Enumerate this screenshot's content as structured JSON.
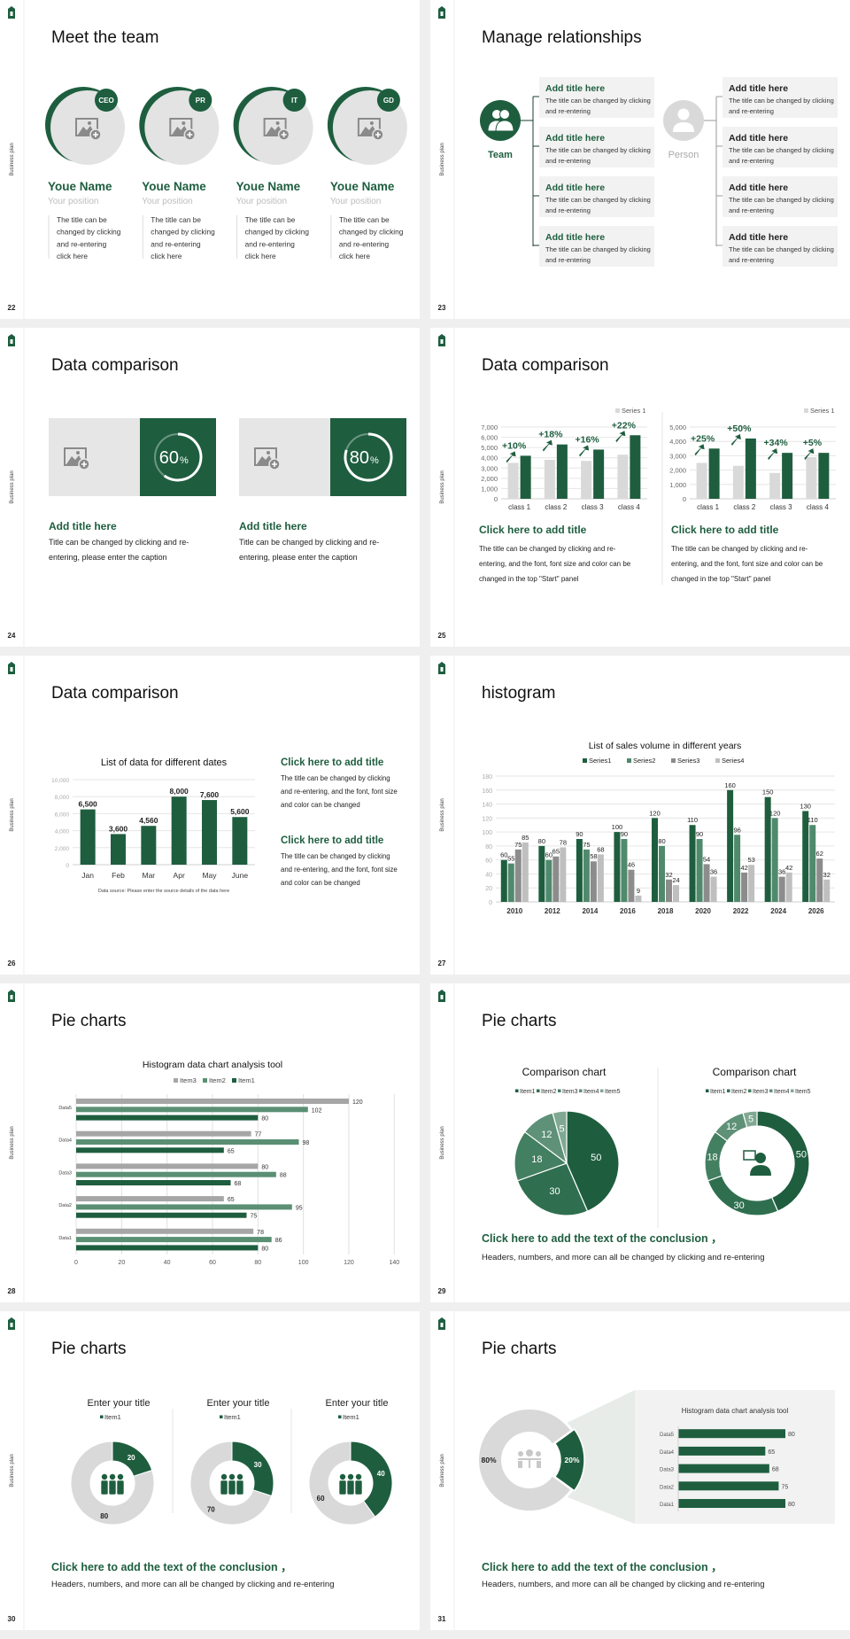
{
  "deck": {
    "side_label": "Business plan",
    "colors": {
      "accent": "#1e5e3f",
      "medium": "#5a8f74",
      "gray": "#d9d9d9",
      "dark_gray": "#8c8c8c",
      "light_gray": "#bfbfbf"
    }
  },
  "slide22": {
    "page": "22",
    "title": "Meet the team",
    "members": [
      {
        "badge": "CEO",
        "name": "Youe Name",
        "position": "Your position",
        "desc": [
          "The title can be",
          "changed by clicking",
          "and re-entering",
          "click here"
        ]
      },
      {
        "badge": "PR",
        "name": "Youe Name",
        "position": "Your position",
        "desc": [
          "The title can be",
          "changed by clicking",
          "and re-entering",
          "click here"
        ]
      },
      {
        "badge": "IT",
        "name": "Youe Name",
        "position": "Your position",
        "desc": [
          "The title can be",
          "changed by clicking",
          "and re-entering",
          "click here"
        ]
      },
      {
        "badge": "GD",
        "name": "Youe Name",
        "position": "Your position",
        "desc": [
          "The title can be",
          "changed by clicking",
          "and re-entering",
          "click here"
        ]
      }
    ]
  },
  "slide23": {
    "page": "23",
    "title": "Manage relationships",
    "team_label": "Team",
    "person_label": "Person",
    "team_items": [
      {
        "title": "Add title here",
        "desc": [
          "The title can be changed by clicking",
          "and re-entering"
        ]
      },
      {
        "title": "Add title here",
        "desc": [
          "The title can be changed by clicking",
          "and re-entering"
        ]
      },
      {
        "title": "Add title here",
        "desc": [
          "The title can be changed by clicking",
          "and re-entering"
        ]
      },
      {
        "title": "Add title here",
        "desc": [
          "The title can be changed by clicking",
          "and re-entering"
        ]
      }
    ],
    "person_items": [
      {
        "title": "Add title here",
        "desc": [
          "The title can be changed by clicking",
          "and re-entering"
        ]
      },
      {
        "title": "Add title here",
        "desc": [
          "The title can be changed by clicking",
          "and re-entering"
        ]
      },
      {
        "title": "Add title here",
        "desc": [
          "The title can be changed by clicking",
          "and re-entering"
        ]
      },
      {
        "title": "Add title here",
        "desc": [
          "The title can be changed by clicking",
          "and re-entering"
        ]
      }
    ]
  },
  "slide24": {
    "page": "24",
    "title": "Data comparison",
    "cards": [
      {
        "percent": "60",
        "unit": "%",
        "progress": 60,
        "heading": "Add title here",
        "desc": [
          "Title can be changed by clicking and re-",
          "entering, please enter the caption"
        ]
      },
      {
        "percent": "80",
        "unit": "%",
        "progress": 80,
        "heading": "Add title here",
        "desc": [
          "Title can be changed by clicking and re-",
          "entering, please enter the caption"
        ]
      }
    ]
  },
  "slide25": {
    "page": "25",
    "title": "Data comparison",
    "panels": [
      {
        "heading": "Click here to add title",
        "desc": [
          "The title can be changed by clicking and re-",
          "entering, and the font, font size and color can be",
          "changed in the top \"Start\" panel"
        ]
      },
      {
        "heading": "Click here to add title",
        "desc": [
          "The title can be changed by clicking and re-",
          "entering, and the font, font size and color can be",
          "changed in the top \"Start\" panel"
        ]
      }
    ]
  },
  "slide26": {
    "page": "26",
    "title": "Data comparison",
    "source": "Data source: Please enter the source details of the data here",
    "notes": [
      {
        "heading": "Click here to add title",
        "desc": [
          "The title can be changed by clicking",
          "and re-entering, and the font, font size",
          "and color can be changed"
        ]
      },
      {
        "heading": "Click here to add title",
        "desc": [
          "The title can be changed by clicking",
          "and re-entering, and the font, font size",
          "and color can be changed"
        ]
      }
    ]
  },
  "slide27": {
    "page": "27",
    "title": "histogram"
  },
  "slide28": {
    "page": "28",
    "title": "Pie charts"
  },
  "slide29": {
    "page": "29",
    "title": "Pie charts",
    "conclusion": "Click here to add the text of the conclusion ，",
    "conclusion_text": "Headers, numbers, and more can all be changed by clicking and re-entering"
  },
  "slide30": {
    "page": "30",
    "title": "Pie charts",
    "conclusion": "Click here to add the text of the conclusion ，",
    "conclusion_text": "Headers, numbers, and more can all be changed by clicking and re-entering"
  },
  "slide31": {
    "page": "31",
    "title": "Pie charts",
    "conclusion": "Click here to add the text of the conclusion ，",
    "conclusion_text": "Headers, numbers, and more can all be changed by clicking and re-entering"
  },
  "chart_data": [
    {
      "type": "bar",
      "categories": [
        "class 1",
        "class 2",
        "class 3",
        "class 4"
      ],
      "series": [
        {
          "name": "Series 1",
          "values": [
            3500,
            3800,
            3700,
            4300
          ]
        },
        {
          "values": [
            4200,
            5300,
            4800,
            6200
          ]
        }
      ],
      "annotations": [
        "+10%",
        "+18%",
        "+16%",
        "+22%"
      ],
      "ylim": [
        0,
        7000
      ],
      "yticks": [
        "0",
        "1,000",
        "2,000",
        "3,000",
        "4,000",
        "5,000",
        "6,000",
        "7,000"
      ],
      "legend": "top-right",
      "grid": true
    },
    {
      "type": "bar",
      "categories": [
        "class 1",
        "class 2",
        "class 3",
        "class 4"
      ],
      "series": [
        {
          "name": "Series 1",
          "values": [
            2500,
            2300,
            1800,
            2900
          ]
        },
        {
          "values": [
            3500,
            4200,
            3200,
            3200
          ]
        }
      ],
      "annotations": [
        "+25%",
        "+50%",
        "+34%",
        "+5%"
      ],
      "ylim": [
        0,
        5000
      ],
      "yticks": [
        "0",
        "1,000",
        "2,000",
        "3,000",
        "4,000",
        "5,000"
      ],
      "legend": "top-right",
      "grid": true
    },
    {
      "type": "bar",
      "title": "List of data for different dates",
      "categories": [
        "Jan",
        "Feb",
        "Mar",
        "Apr",
        "May",
        "June"
      ],
      "values": [
        6500,
        3600,
        4560,
        8000,
        7600,
        5600
      ],
      "labels": [
        "6,500",
        "3,600",
        "4,560",
        "8,000",
        "7,600",
        "5,600"
      ],
      "ylim": [
        0,
        10000
      ],
      "yticks": [
        "0",
        "2,000",
        "4,000",
        "6,000",
        "8,000",
        "10,000"
      ],
      "grid": true
    },
    {
      "type": "bar",
      "title": "List of sales volume in different years",
      "categories": [
        "2010",
        "2012",
        "2014",
        "2016",
        "2018",
        "2020",
        "2022",
        "2024",
        "2026"
      ],
      "series": [
        {
          "name": "Series1",
          "values": [
            60,
            80,
            90,
            100,
            120,
            110,
            160,
            150,
            130
          ]
        },
        {
          "name": "Series2",
          "values": [
            55,
            60,
            75,
            90,
            80,
            90,
            96,
            120,
            110
          ]
        },
        {
          "name": "Series3",
          "values": [
            75,
            65,
            58,
            46,
            32,
            54,
            42,
            36,
            62
          ]
        },
        {
          "name": "Series4",
          "values": [
            85,
            78,
            68,
            9,
            24,
            36,
            53,
            42,
            32
          ]
        }
      ],
      "ylim": [
        0,
        180
      ],
      "yticks": [
        "0",
        "20",
        "40",
        "60",
        "80",
        "100",
        "120",
        "140",
        "160",
        "180"
      ],
      "legend": "top",
      "grid": true
    },
    {
      "type": "bar",
      "orientation": "horizontal",
      "title": "Histogram data chart analysis tool",
      "categories": [
        "Data1",
        "Data2",
        "Data3",
        "Data4",
        "Data5"
      ],
      "series": [
        {
          "name": "Item3",
          "values": [
            78,
            65,
            80,
            77,
            120
          ]
        },
        {
          "name": "Item2",
          "values": [
            86,
            95,
            88,
            98,
            102
          ]
        },
        {
          "name": "Item1",
          "values": [
            80,
            75,
            68,
            65,
            80
          ]
        }
      ],
      "xlim": [
        0,
        140
      ],
      "xticks": [
        "0",
        "20",
        "40",
        "60",
        "80",
        "100",
        "120",
        "140"
      ],
      "legend": "top",
      "grid": true
    },
    {
      "type": "pie",
      "title": "Comparison chart",
      "categories": [
        "Item1",
        "Item2",
        "Item3",
        "Item4",
        "Item5"
      ],
      "values": [
        50,
        30,
        18,
        12,
        5
      ],
      "legend": "top"
    },
    {
      "type": "pie",
      "variant": "donut",
      "title": "Comparison chart",
      "categories": [
        "Item1",
        "Item2",
        "Item3",
        "Item4",
        "Item5"
      ],
      "values": [
        50,
        30,
        18,
        12,
        5
      ],
      "legend": "top"
    },
    {
      "type": "pie",
      "variant": "donut",
      "title": "Enter your title",
      "categories": [
        "Item1",
        ""
      ],
      "values": [
        20,
        80
      ],
      "labels": [
        "20",
        "80"
      ],
      "legend": "top"
    },
    {
      "type": "pie",
      "variant": "donut",
      "title": "Enter your title",
      "categories": [
        "Item1",
        ""
      ],
      "values": [
        30,
        70
      ],
      "labels": [
        "30",
        "70"
      ],
      "legend": "top"
    },
    {
      "type": "pie",
      "variant": "donut",
      "title": "Enter your title",
      "categories": [
        "Item1",
        ""
      ],
      "values": [
        40,
        60
      ],
      "labels": [
        "40",
        "60"
      ],
      "legend": "top"
    },
    {
      "type": "pie",
      "variant": "donut",
      "values": [
        80,
        20
      ],
      "labels": [
        "80%",
        "20%"
      ]
    },
    {
      "type": "bar",
      "orientation": "horizontal",
      "title": "Histogram data chart analysis tool",
      "categories": [
        "Data1",
        "Data2",
        "Data3",
        "Data4",
        "Data5"
      ],
      "values": [
        80,
        75,
        68,
        65,
        80
      ],
      "labels": [
        "80",
        "75",
        "68",
        "65",
        "80"
      ]
    }
  ]
}
